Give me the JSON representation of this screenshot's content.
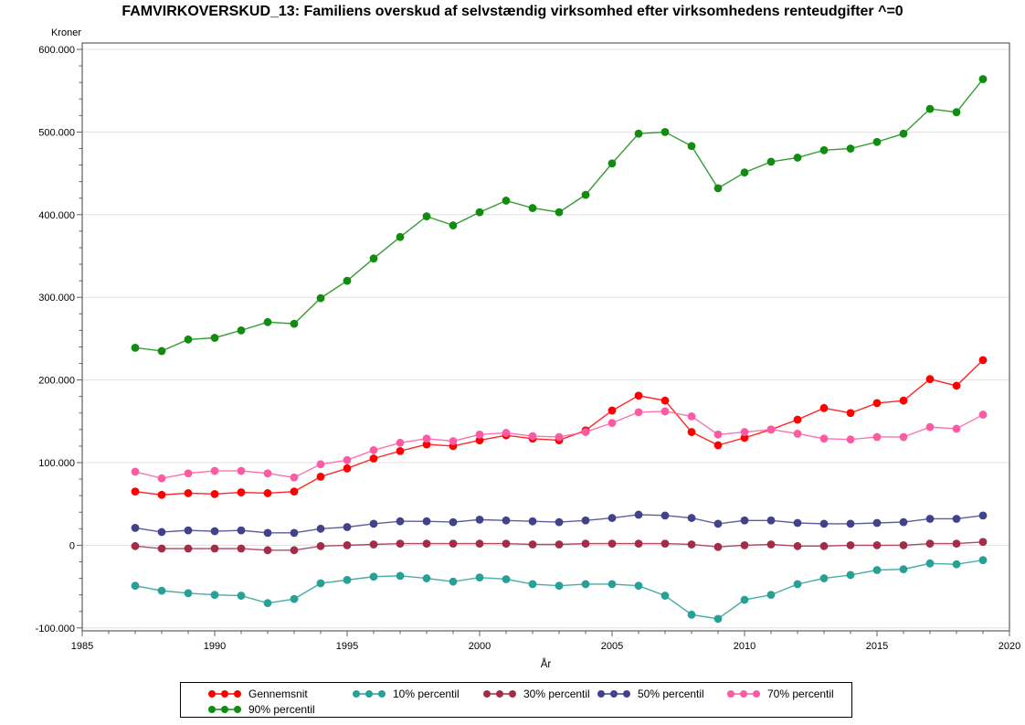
{
  "chart_data": {
    "type": "line",
    "title": "FAMVIRKOVERSKUD_13: Familiens overskud af selvstændig virksomhed efter virksomhedens renteudgifter ^=0",
    "ylabel": "Kroner",
    "xlabel": "År",
    "grid": "horizontal",
    "legend_position": "bottom",
    "xlim": [
      1985,
      2020
    ],
    "ylim": [
      -100000,
      600000
    ],
    "xticks": [
      1985,
      1990,
      1995,
      2000,
      2005,
      2010,
      2015,
      2020
    ],
    "yticks": [
      {
        "value": 600000,
        "label": "600.000"
      },
      {
        "value": 500000,
        "label": "500.000"
      },
      {
        "value": 400000,
        "label": "400.000"
      },
      {
        "value": 300000,
        "label": "300.000"
      },
      {
        "value": 200000,
        "label": "200.000"
      },
      {
        "value": 100000,
        "label": "100.000"
      },
      {
        "value": 0,
        "label": "0"
      },
      {
        "value": -100000,
        "label": "-100.000"
      }
    ],
    "ytick_minor_step": 20000,
    "x": [
      1987,
      1988,
      1989,
      1990,
      1991,
      1992,
      1993,
      1994,
      1995,
      1996,
      1997,
      1998,
      1999,
      2000,
      2001,
      2002,
      2003,
      2004,
      2005,
      2006,
      2007,
      2008,
      2009,
      2010,
      2011,
      2012,
      2013,
      2014,
      2015,
      2016,
      2017,
      2018,
      2019
    ],
    "series": [
      {
        "name": "Gennemsnit",
        "color": "#FE0000",
        "values": [
          65000,
          61000,
          63000,
          62000,
          64000,
          63000,
          65000,
          83000,
          93000,
          105000,
          114000,
          122000,
          120000,
          127000,
          133000,
          129000,
          127000,
          139000,
          163000,
          181000,
          175000,
          137000,
          121000,
          130000,
          140000,
          152000,
          166000,
          160000,
          172000,
          175000,
          201000,
          193000,
          224000
        ]
      },
      {
        "name": "10% percentil",
        "color": "#27A095",
        "values": [
          -49000,
          -55000,
          -58000,
          -60000,
          -61000,
          -70000,
          -65000,
          -46000,
          -42000,
          -38000,
          -37000,
          -40000,
          -44000,
          -39000,
          -41000,
          -47000,
          -49000,
          -47000,
          -47000,
          -49000,
          -61000,
          -84000,
          -89000,
          -66000,
          -60000,
          -47000,
          -40000,
          -36000,
          -30000,
          -29000,
          -22000,
          -23000,
          -18000
        ]
      },
      {
        "name": "30% percentil",
        "color": "#A32D49",
        "values": [
          -1000,
          -4000,
          -4000,
          -4000,
          -4000,
          -6000,
          -6000,
          -1000,
          0,
          1000,
          2000,
          2000,
          2000,
          2000,
          2000,
          1000,
          1000,
          2000,
          2000,
          2000,
          2000,
          1000,
          -2000,
          0,
          1000,
          -1000,
          -1000,
          0,
          0,
          0,
          2000,
          2000,
          4000
        ]
      },
      {
        "name": "50% percentil",
        "color": "#41418C",
        "values": [
          21000,
          16000,
          18000,
          17000,
          18000,
          15000,
          15000,
          20000,
          22000,
          26000,
          29000,
          29000,
          28000,
          31000,
          30000,
          29000,
          28000,
          30000,
          33000,
          37000,
          36000,
          33000,
          26000,
          30000,
          30000,
          27000,
          26000,
          26000,
          27000,
          28000,
          32000,
          32000,
          36000
        ]
      },
      {
        "name": "70% percentil",
        "color": "#FC5BA4",
        "values": [
          89000,
          81000,
          87000,
          90000,
          90000,
          87000,
          82000,
          98000,
          103000,
          115000,
          124000,
          129000,
          126000,
          134000,
          136000,
          132000,
          131000,
          137000,
          148000,
          161000,
          162000,
          156000,
          134000,
          137000,
          140000,
          135000,
          129000,
          128000,
          131000,
          131000,
          143000,
          141000,
          158000
        ]
      },
      {
        "name": "90% percentil",
        "color": "#118C11",
        "values": [
          239000,
          235000,
          249000,
          251000,
          260000,
          270000,
          268000,
          299000,
          320000,
          347000,
          373000,
          398000,
          387000,
          403000,
          417000,
          408000,
          403000,
          424000,
          462000,
          498000,
          500000,
          483000,
          432000,
          451000,
          464000,
          469000,
          478000,
          480000,
          488000,
          498000,
          528000,
          524000,
          564000
        ]
      }
    ]
  }
}
